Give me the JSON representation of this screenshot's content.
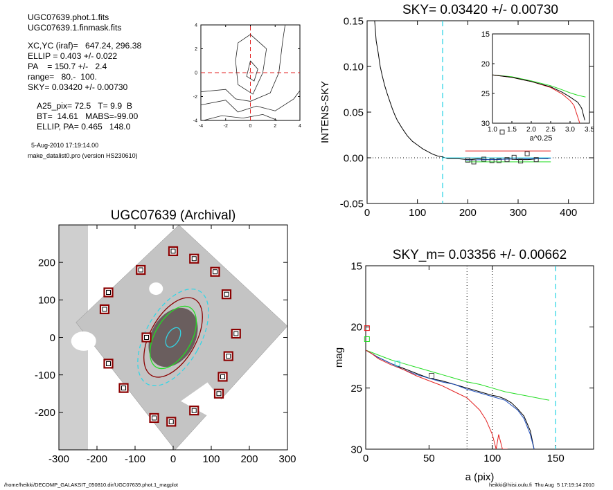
{
  "info": {
    "lines": [
      "UGC07639.phot.1.fits",
      "UGC07639.1.finmask.fits",
      "XC,YC (iraf)=   647.24, 296.38",
      "ELLIP = 0.403 +/- 0.022",
      "PA    = 150.7 +/-   2.4",
      "range=   80.-  100.",
      "SKY= 0.03420 +/- 0.00730"
    ],
    "params": [
      "A25_pix= 72.5   T= 9.9  B",
      "BT=  14.61   MABS=-99.00",
      "ELLIP, PA= 0.465   148.0"
    ],
    "date": "5-Aug-2010 17:19:14.00",
    "program": "make_datalist0.pro (version HS230610)"
  },
  "footer": {
    "left": "/home/heikki/DECOMP_GALAKSIT_050810.dir/UGC07639.phot.1_magplot",
    "right": "heikki@hiisi.oulu.fi  Thu Aug  5 17:19:14 2010"
  },
  "colors": {
    "red": "#e32020",
    "green": "#22dd22",
    "cyan": "#33d6e6",
    "dark_red": "#8b0000",
    "blue": "#1f4fbf",
    "gray": "#505050"
  },
  "chart_data": [
    {
      "type": "contour",
      "panel": "center-contour",
      "xlim": [
        -4,
        4
      ],
      "ylim": [
        -4,
        4
      ],
      "xticks": [
        -4,
        -2,
        0,
        2,
        4
      ],
      "yticks": [
        -4,
        -2,
        0,
        2,
        4
      ],
      "crosshair": [
        0,
        0
      ],
      "contours": [
        [
          [
            0.0,
            1.0
          ],
          [
            0.6,
            0.3
          ],
          [
            0.3,
            -0.7
          ],
          [
            -0.3,
            -0.3
          ],
          [
            0.0,
            1.0
          ]
        ],
        [
          [
            -1.0,
            2.5
          ],
          [
            0.0,
            3.2
          ],
          [
            1.3,
            2.0
          ],
          [
            1.0,
            0.0
          ],
          [
            0.2,
            -1.8
          ],
          [
            -1.0,
            -1.0
          ],
          [
            -1.2,
            1.0
          ],
          [
            -1.0,
            2.5
          ]
        ],
        [
          [
            -4.0,
            -1.6
          ],
          [
            -2.0,
            -1.4
          ],
          [
            -1.2,
            -2.2
          ],
          [
            0.0,
            -2.4
          ],
          [
            1.6,
            -1.7
          ],
          [
            2.3,
            0.0
          ],
          [
            2.6,
            2.6
          ],
          [
            2.8,
            4.0
          ]
        ],
        [
          [
            -4.0,
            -2.7
          ],
          [
            -2.0,
            -2.3
          ],
          [
            -1.0,
            -3.3
          ],
          [
            0.5,
            -2.8
          ],
          [
            2.0,
            -3.2
          ],
          [
            3.5,
            -2.2
          ],
          [
            4.0,
            -1.5
          ]
        ],
        [
          [
            -3.8,
            -4.0
          ],
          [
            -2.3,
            -3.6
          ],
          [
            -0.6,
            -3.8
          ],
          [
            1.0,
            -3.5
          ],
          [
            2.2,
            -4.0
          ]
        ]
      ]
    },
    {
      "type": "line",
      "panel": "sky-profile",
      "title": "SKY= 0.03420 +/- 0.00730",
      "ylabel": "INTENS-SKY",
      "xlim": [
        0,
        450
      ],
      "ylim": [
        -0.05,
        0.15
      ],
      "xticks": [
        0,
        100,
        200,
        300,
        400
      ],
      "yticks": [
        -0.05,
        0.0,
        0.05,
        0.1,
        0.15
      ],
      "ytick_labels": [
        "-0.05",
        "0.00",
        "0.05",
        "0.10",
        "0.15"
      ],
      "vline": 150,
      "series": [
        {
          "color": "black",
          "x": [
            15,
            18,
            22,
            26,
            30,
            35,
            40,
            45,
            50,
            55,
            60,
            70,
            80,
            90,
            100,
            110,
            120,
            130,
            140,
            150,
            160,
            180,
            200,
            220,
            240,
            260,
            280,
            300,
            320,
            340,
            360
          ],
          "y": [
            0.15,
            0.128,
            0.115,
            0.1,
            0.09,
            0.079,
            0.07,
            0.062,
            0.054,
            0.047,
            0.041,
            0.032,
            0.024,
            0.018,
            0.014,
            0.01,
            0.007,
            0.004,
            0.002,
            0.001,
            -0.001,
            -0.001,
            -0.002,
            -0.001,
            -0.002,
            -0.002,
            -0.001,
            -0.002,
            -0.002,
            -0.001,
            -0.001
          ]
        },
        {
          "color": "cyan",
          "x": [
            150,
            365
          ],
          "y": [
            0.0,
            0.0
          ]
        },
        {
          "color": "red",
          "x": [
            195,
            365
          ],
          "y": [
            0.0075,
            0.0075
          ]
        },
        {
          "color": "green",
          "x": [
            195,
            365
          ],
          "y": [
            -0.0045,
            -0.0045
          ]
        },
        {
          "color": "blue",
          "x": [
            195,
            365
          ],
          "y": [
            -0.0025,
            -0.0005
          ]
        }
      ],
      "squares": {
        "x": [
          200,
          212,
          232,
          248,
          262,
          278,
          292,
          305,
          318,
          336
        ],
        "y": [
          -0.0025,
          -0.0045,
          -0.0015,
          -0.003,
          -0.003,
          -0.002,
          0.0005,
          -0.0035,
          0.0045,
          -0.002
        ]
      },
      "inset": {
        "xlabel": "a^0.25",
        "xlim": [
          1.0,
          3.5
        ],
        "ylim": [
          15,
          30
        ],
        "xticks": [
          1.0,
          1.5,
          2.0,
          2.5,
          3.0,
          3.5
        ],
        "xtick_labels": [
          "1.0",
          "1.5",
          "2.0",
          "2.5",
          "3.0",
          "3.5"
        ],
        "yticks": [
          15,
          20,
          25,
          30
        ],
        "series": [
          {
            "color": "green",
            "x": [
              1.0,
              1.5,
              2.0,
              2.5,
              2.8,
              3.0,
              3.2,
              3.4
            ],
            "y": [
              21.9,
              22.2,
              22.9,
              23.7,
              24.4,
              24.9,
              25.3,
              25.6
            ]
          },
          {
            "color": "red",
            "x": [
              1.0,
              1.5,
              2.0,
              2.5,
              2.8,
              3.0,
              3.1,
              3.2,
              3.25
            ],
            "y": [
              21.9,
              22.3,
              23.0,
              24.0,
              25.1,
              26.2,
              27.0,
              29.0,
              30.0
            ]
          },
          {
            "color": "black",
            "x": [
              1.0,
              1.5,
              2.0,
              2.5,
              2.8,
              3.0,
              3.2,
              3.3,
              3.38
            ],
            "y": [
              21.9,
              22.3,
              23.0,
              23.9,
              24.8,
              25.6,
              26.5,
              27.5,
              29.5
            ]
          }
        ],
        "squares": {
          "x": [
            1.25
          ],
          "y": [
            31.5
          ]
        }
      }
    },
    {
      "type": "image",
      "panel": "galaxy-image",
      "title": "UGC07639 (Archival)",
      "xlim": [
        -300,
        300
      ],
      "ylim": [
        -300,
        300
      ],
      "xticks": [
        -300,
        -200,
        -100,
        0,
        100,
        200,
        300
      ],
      "yticks": [
        -200,
        -100,
        0,
        100,
        200
      ],
      "ellipses": [
        {
          "color": "cyan",
          "style": "dashed",
          "a": 140,
          "b": 72,
          "pa_deg": 150.7
        },
        {
          "color": "dark_red",
          "style": "solid",
          "a": 115,
          "b": 60,
          "pa_deg": 150.7
        },
        {
          "color": "green",
          "style": "solid",
          "a": 90,
          "b": 48,
          "pa_deg": 150.7
        },
        {
          "color": "cyan",
          "style": "solid",
          "a": 28,
          "b": 16,
          "pa_deg": 150.7
        }
      ],
      "sky_boxes": {
        "x": [
          0,
          55,
          -85,
          110,
          -170,
          -180,
          140,
          -70,
          165,
          -170,
          145,
          -130,
          130,
          120,
          -50,
          -5,
          55
        ],
        "y": [
          230,
          210,
          180,
          175,
          120,
          75,
          115,
          0,
          10,
          -70,
          -50,
          -135,
          -105,
          -150,
          -215,
          -225,
          -195
        ]
      }
    },
    {
      "type": "line",
      "panel": "magnitude-profile",
      "title": "SKY_m=  0.03356 +/- 0.00662",
      "xlabel": "a (pix)",
      "ylabel": "mag",
      "xlim": [
        0,
        180
      ],
      "ylim": [
        30,
        15
      ],
      "xticks": [
        0,
        50,
        100,
        150
      ],
      "yticks": [
        15,
        20,
        25,
        30
      ],
      "vlines_dotted": [
        80,
        100
      ],
      "vline_dashed": 150,
      "series": [
        {
          "color": "green",
          "x": [
            0,
            5,
            10,
            20,
            30,
            40,
            50,
            60,
            70,
            80,
            90,
            100,
            110,
            120,
            130,
            140,
            145
          ],
          "y": [
            21.9,
            22.1,
            22.3,
            22.7,
            23.0,
            23.3,
            23.6,
            23.9,
            24.2,
            24.5,
            24.7,
            25.0,
            25.3,
            25.5,
            25.7,
            25.9,
            26.0
          ]
        },
        {
          "color": "black",
          "x": [
            0,
            5,
            10,
            20,
            30,
            40,
            50,
            60,
            70,
            80,
            90,
            100,
            105,
            110,
            115,
            120,
            125,
            130,
            133
          ],
          "y": [
            21.9,
            22.2,
            22.5,
            23.0,
            23.4,
            23.8,
            24.2,
            24.4,
            24.7,
            25.0,
            25.3,
            25.6,
            25.7,
            25.9,
            26.2,
            26.7,
            27.3,
            28.5,
            30.0
          ]
        },
        {
          "color": "blue",
          "x": [
            0,
            10,
            20,
            30,
            40,
            50,
            60,
            70,
            80,
            90,
            100,
            110,
            120,
            125,
            130,
            133
          ],
          "y": [
            21.9,
            22.5,
            23.0,
            23.5,
            23.9,
            24.2,
            24.5,
            24.7,
            25.1,
            25.4,
            25.7,
            26.0,
            26.8,
            27.5,
            28.8,
            30.0
          ]
        },
        {
          "color": "red",
          "x": [
            0,
            5,
            10,
            20,
            30,
            40,
            50,
            60,
            70,
            80,
            85,
            90,
            95,
            100,
            103,
            105,
            108,
            112
          ],
          "y": [
            21.9,
            22.2,
            22.6,
            23.1,
            23.5,
            24.0,
            24.4,
            24.8,
            25.3,
            25.8,
            26.3,
            26.8,
            27.6,
            28.8,
            30.0,
            28.8,
            30.0,
            30.0
          ]
        }
      ],
      "markers": [
        {
          "color": "red",
          "x": 1,
          "y": 20.1
        },
        {
          "color": "green",
          "x": 1,
          "y": 21.0
        },
        {
          "color": "cyan",
          "x": 25,
          "y": 23.0
        },
        {
          "color": "gray",
          "x": 52,
          "y": 24.0
        }
      ]
    }
  ]
}
